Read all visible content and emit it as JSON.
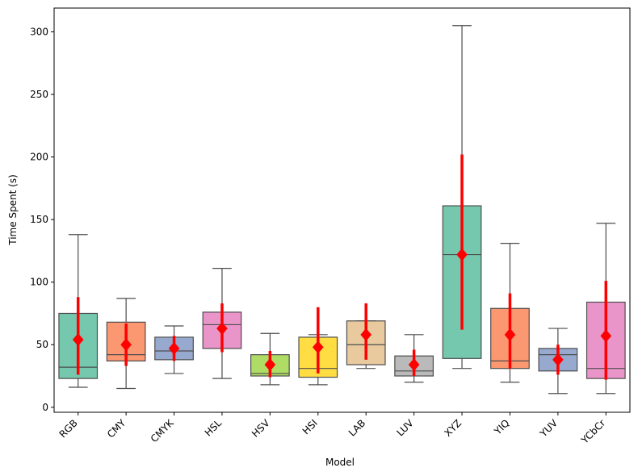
{
  "chart_data": {
    "type": "box",
    "title": "",
    "xlabel": "Model",
    "ylabel": "Time Spent (s)",
    "ylim": [
      -4,
      319
    ],
    "yticks": [
      0,
      50,
      100,
      150,
      200,
      250,
      300
    ],
    "categories": [
      "RGB",
      "CMY",
      "CMYK",
      "HSL",
      "HSV",
      "HSI",
      "LAB",
      "LUV",
      "XYZ",
      "YIQ",
      "YUV",
      "YCbCr"
    ],
    "box_colors": [
      "#66c2a5",
      "#fc8d62",
      "#8da0cb",
      "#e78ac3",
      "#a6d854",
      "#ffd92f",
      "#e5c494",
      "#b3b3b3",
      "#66c2a5",
      "#fc8d62",
      "#8da0cb",
      "#e78ac3"
    ],
    "boxes": [
      {
        "category": "RGB",
        "whisker_low": 16,
        "q1": 23,
        "median": 32,
        "q3": 75,
        "whisker_high": 138
      },
      {
        "category": "CMY",
        "whisker_low": 15,
        "q1": 37,
        "median": 42,
        "q3": 68,
        "whisker_high": 87
      },
      {
        "category": "CMYK",
        "whisker_low": 27,
        "q1": 38,
        "median": 45,
        "q3": 56,
        "whisker_high": 65
      },
      {
        "category": "HSL",
        "whisker_low": 23,
        "q1": 47,
        "median": 66,
        "q3": 76,
        "whisker_high": 111
      },
      {
        "category": "HSV",
        "whisker_low": 18,
        "q1": 25,
        "median": 27,
        "q3": 42,
        "whisker_high": 59
      },
      {
        "category": "HSI",
        "whisker_low": 18,
        "q1": 24,
        "median": 31,
        "q3": 56,
        "whisker_high": 58
      },
      {
        "category": "LAB",
        "whisker_low": 31,
        "q1": 34,
        "median": 50,
        "q3": 69,
        "whisker_high": 69
      },
      {
        "category": "LUV",
        "whisker_low": 20,
        "q1": 25,
        "median": 29,
        "q3": 41,
        "whisker_high": 58
      },
      {
        "category": "XYZ",
        "whisker_low": 31,
        "q1": 39,
        "median": 122,
        "q3": 161,
        "whisker_high": 305
      },
      {
        "category": "YIQ",
        "whisker_low": 20,
        "q1": 31,
        "median": 37,
        "q3": 79,
        "whisker_high": 131
      },
      {
        "category": "YUV",
        "whisker_low": 11,
        "q1": 29,
        "median": 42,
        "q3": 47,
        "whisker_high": 63
      },
      {
        "category": "YCbCr",
        "whisker_low": 11,
        "q1": 23,
        "median": 31,
        "q3": 84,
        "whisker_high": 147
      }
    ],
    "mean_series": {
      "name": "mean",
      "color": "#ff0000",
      "marker": "diamond",
      "means": [
        54,
        50,
        47,
        63,
        34,
        48,
        58,
        34,
        122,
        58,
        38,
        57
      ],
      "ci_low": [
        26,
        33,
        37,
        44,
        24,
        27,
        38,
        25,
        62,
        31,
        26,
        22
      ],
      "ci_high": [
        88,
        67,
        57,
        83,
        45,
        80,
        83,
        46,
        202,
        91,
        50,
        101
      ]
    }
  }
}
